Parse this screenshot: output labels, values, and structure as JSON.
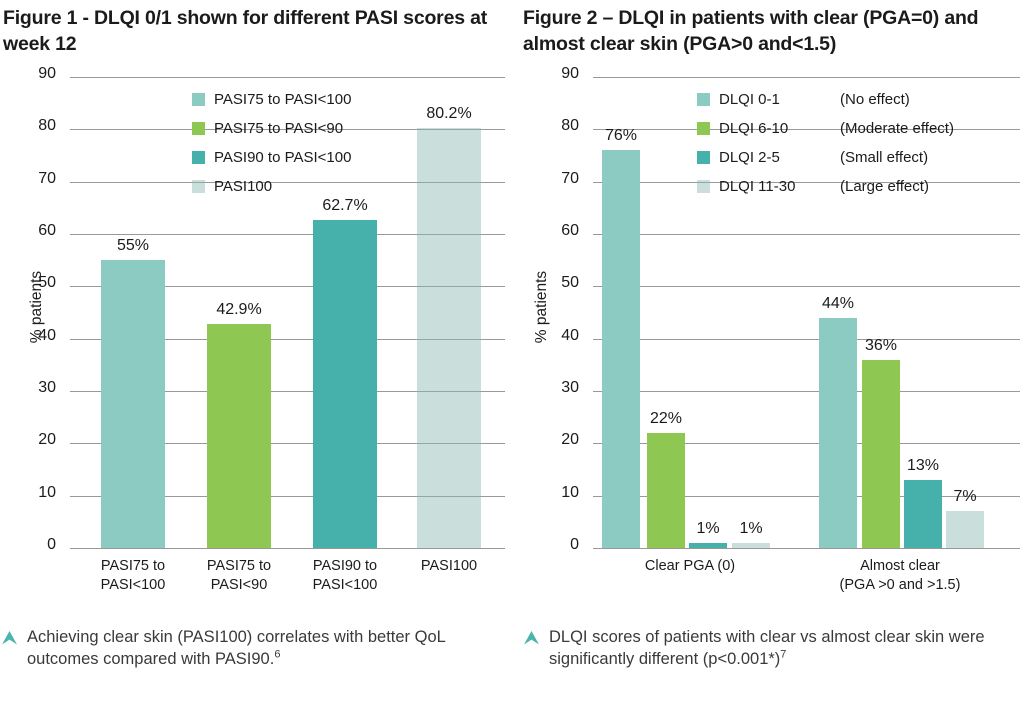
{
  "page": {
    "background": "#ffffff"
  },
  "chart_data": [
    {
      "type": "bar",
      "title": "Figure 1 - DLQI 0/1 shown for different PASI scores at week 12",
      "ylabel": "% patients",
      "ylim": [
        0,
        90
      ],
      "ytick_step": 10,
      "grid": true,
      "legend_position": "top-inside",
      "categories": [
        "PASI75 to\nPASI<100",
        "PASI75 to\nPASI<90",
        "PASI90 to\nPASI<100",
        "PASI100"
      ],
      "values": [
        55,
        42.9,
        62.7,
        80.2
      ],
      "value_labels": [
        "55%",
        "42.9%",
        "62.7%",
        "80.2%"
      ],
      "bar_colors": [
        "#8BCBC2",
        "#8EC751",
        "#45B1AA",
        "rgba(137,185,176,0.45)"
      ],
      "legend": [
        {
          "label": "PASI75 to PASI<100",
          "color": "#8BCBC2"
        },
        {
          "label": "PASI75 to PASI<90",
          "color": "#8EC751"
        },
        {
          "label": "PASI90 to PASI<100",
          "color": "#45B1AA"
        },
        {
          "label": "PASI100",
          "color": "rgba(137,185,176,0.45)"
        }
      ],
      "footnote": {
        "text": "Achieving clear skin (PASI100) correlates with better QoL outcomes compared with PASI90.",
        "sup": "6"
      }
    },
    {
      "type": "bar",
      "title": "Figure 2 – DLQI in patients with clear (PGA=0) and almost clear skin (PGA>0 and<1.5)",
      "ylabel": "% patients",
      "ylim": [
        0,
        90
      ],
      "ytick_step": 10,
      "grid": true,
      "legend_position": "top-inside",
      "categories": [
        "Clear PGA (0)",
        "Almost clear\n(PGA >0 and >1.5)"
      ],
      "series": [
        {
          "name": "DLQI 0-1",
          "effect": "(No effect)",
          "color": "#8BCBC2",
          "values": [
            76,
            44
          ],
          "value_labels": [
            "76%",
            "44%"
          ]
        },
        {
          "name": "DLQI 6-10",
          "effect": "(Moderate effect)",
          "color": "#8EC751",
          "values": [
            22,
            36
          ],
          "value_labels": [
            "22%",
            "36%"
          ]
        },
        {
          "name": "DLQI 2-5",
          "effect": "(Small effect)",
          "color": "#45B1AA",
          "values": [
            1,
            13
          ],
          "value_labels": [
            "1%",
            "13%"
          ]
        },
        {
          "name": "DLQI 11-30",
          "effect": "(Large effect)",
          "color": "rgba(137,185,176,0.45)",
          "values": [
            1,
            7
          ],
          "value_labels": [
            "1%",
            "7%"
          ]
        }
      ],
      "footnote": {
        "text": "DLQI scores of patients with clear vs almost clear skin were significantly different (p<0.001*)",
        "sup": "7"
      }
    }
  ],
  "colors": {
    "accent_teal": "#45B1AA",
    "accent_green": "#8EC751",
    "teal_light": "#8BCBC2",
    "teal_pale": "#CBE2DE",
    "gridline": "#999999",
    "title_text": "#1B1B1B",
    "footnote_caret": "#4AB5AC"
  }
}
